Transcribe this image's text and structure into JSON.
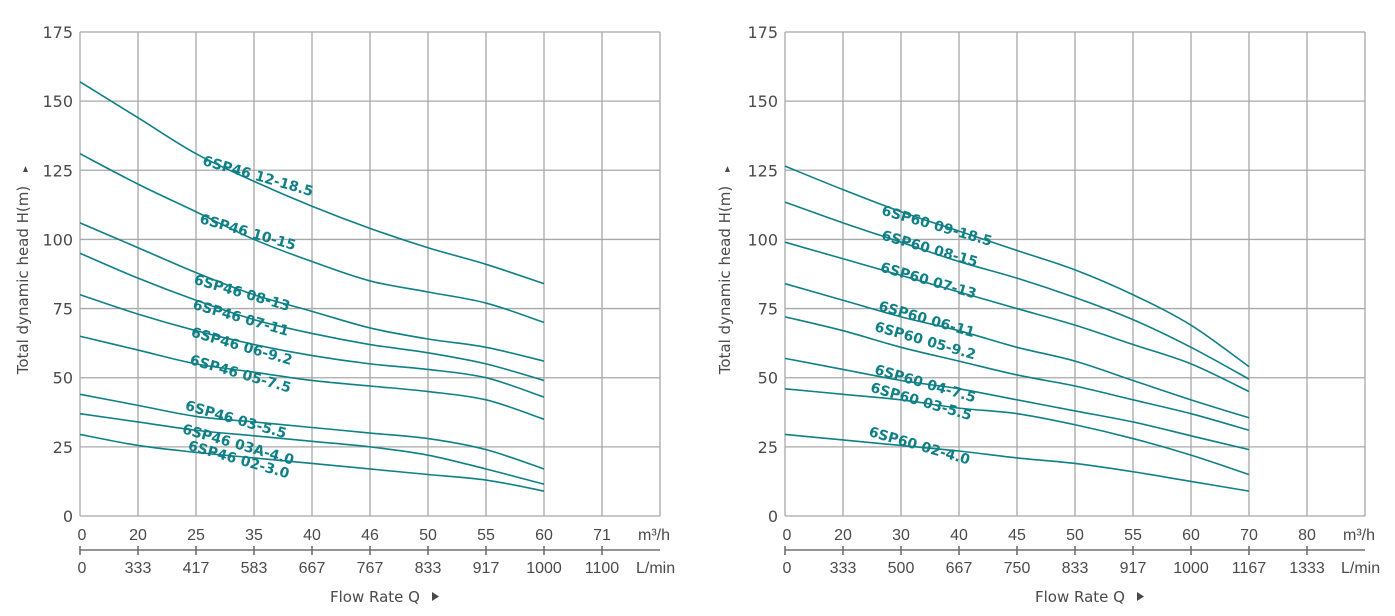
{
  "chart_data": [
    {
      "type": "line",
      "title": "",
      "ylabel": "Total dynamic head H(m)",
      "xlabel": "Flow Rate Q",
      "ylim": [
        0,
        175
      ],
      "yticks": [
        "0",
        "25",
        "50",
        "75",
        "100",
        "125",
        "150",
        "175"
      ],
      "x_ticks_m3h": [
        "0",
        "20",
        "25",
        "35",
        "40",
        "46",
        "50",
        "55",
        "60",
        "71"
      ],
      "x_unit_m3h": "m³/h",
      "x_ticks_lmin": [
        "0",
        "333",
        "417",
        "583",
        "667",
        "767",
        "833",
        "917",
        "1000",
        "1100"
      ],
      "x_unit_lmin": "L/min",
      "grid": true,
      "x_index_range": [
        0,
        10
      ],
      "series": [
        {
          "name": "6SP46 12-18.5",
          "values": [
            157,
            144,
            131,
            121,
            112,
            104,
            97,
            91,
            84
          ],
          "label_at": [
            2.1,
            127
          ]
        },
        {
          "name": "6SP46 10-15",
          "values": [
            131,
            120,
            110,
            100,
            92,
            85,
            81,
            77,
            70
          ],
          "label_at": [
            2.05,
            106
          ]
        },
        {
          "name": "6SP46 08-13",
          "values": [
            106,
            97,
            88,
            80,
            74,
            68,
            64,
            61,
            56
          ],
          "label_at": [
            1.95,
            84
          ]
        },
        {
          "name": "6SP46 07-11",
          "values": [
            95,
            86,
            78,
            71,
            66,
            62,
            59,
            55,
            49
          ],
          "label_at": [
            1.93,
            75
          ]
        },
        {
          "name": "6SP46 06-9.2",
          "values": [
            80,
            73,
            67,
            62,
            58,
            55,
            53,
            50,
            43
          ],
          "label_at": [
            1.9,
            65
          ]
        },
        {
          "name": "6SP46 05-7.5",
          "values": [
            65,
            60,
            55,
            52,
            49,
            47,
            45,
            42,
            35
          ],
          "label_at": [
            1.88,
            55
          ]
        },
        {
          "name": "6SP46 03-5.5",
          "values": [
            44,
            40,
            36,
            34,
            32,
            30,
            28,
            24,
            17
          ],
          "label_at": [
            1.8,
            38.5
          ]
        },
        {
          "name": "6SP46 03A-4.0",
          "values": [
            37,
            34,
            31,
            29,
            27,
            25,
            22,
            17,
            11.5
          ],
          "label_at": [
            1.75,
            30
          ]
        },
        {
          "name": "6SP46 02-3.0",
          "values": [
            29.5,
            25.5,
            23,
            21,
            19,
            17,
            15,
            13,
            9
          ],
          "label_at": [
            1.85,
            24
          ]
        }
      ]
    },
    {
      "type": "line",
      "title": "",
      "ylabel": "Total dynamic head H(m)",
      "xlabel": "Flow Rate Q",
      "ylim": [
        0,
        175
      ],
      "yticks": [
        "0",
        "25",
        "50",
        "75",
        "100",
        "125",
        "150",
        "175"
      ],
      "x_ticks_m3h": [
        "0",
        "20",
        "30",
        "40",
        "45",
        "50",
        "55",
        "60",
        "70",
        "80"
      ],
      "x_unit_m3h": "m³/h",
      "x_ticks_lmin": [
        "0",
        "333",
        "500",
        "667",
        "750",
        "833",
        "917",
        "1000",
        "1167",
        "1333"
      ],
      "x_unit_lmin": "L/min",
      "grid": true,
      "x_index_range": [
        0,
        10
      ],
      "series": [
        {
          "name": "6SP60 09-18.5",
          "values": [
            126.5,
            118,
            110,
            103,
            96,
            89,
            80,
            69,
            54
          ],
          "label_at": [
            1.65,
            109
          ]
        },
        {
          "name": "6SP60 08-15",
          "values": [
            113.5,
            106,
            99,
            92,
            86,
            79,
            71,
            61,
            49.5
          ],
          "label_at": [
            1.65,
            100
          ]
        },
        {
          "name": "6SP60 07-13",
          "values": [
            99,
            93,
            87,
            81,
            75,
            69,
            62,
            55,
            45
          ],
          "label_at": [
            1.63,
            88.5
          ]
        },
        {
          "name": "6SP60 06-11",
          "values": [
            84,
            78,
            72,
            67,
            61,
            56,
            49,
            42,
            35.5
          ],
          "label_at": [
            1.6,
            74.5
          ]
        },
        {
          "name": "6SP60 05-9.2",
          "values": [
            72,
            67,
            61,
            56,
            51,
            47,
            42,
            37,
            31
          ],
          "label_at": [
            1.53,
            67
          ]
        },
        {
          "name": "6SP60 04-7.5",
          "values": [
            57,
            53,
            49,
            46,
            42,
            38,
            34,
            29,
            24
          ],
          "label_at": [
            1.53,
            51.5
          ]
        },
        {
          "name": "6SP60 03-5.5",
          "values": [
            46,
            44,
            42,
            39,
            37,
            33,
            28,
            22,
            15
          ],
          "label_at": [
            1.46,
            45
          ]
        },
        {
          "name": "6SP60 02-4.0",
          "values": [
            29.5,
            27.5,
            25.5,
            23.5,
            21,
            19,
            16,
            12.5,
            9
          ],
          "label_at": [
            1.43,
            29
          ]
        }
      ]
    }
  ]
}
